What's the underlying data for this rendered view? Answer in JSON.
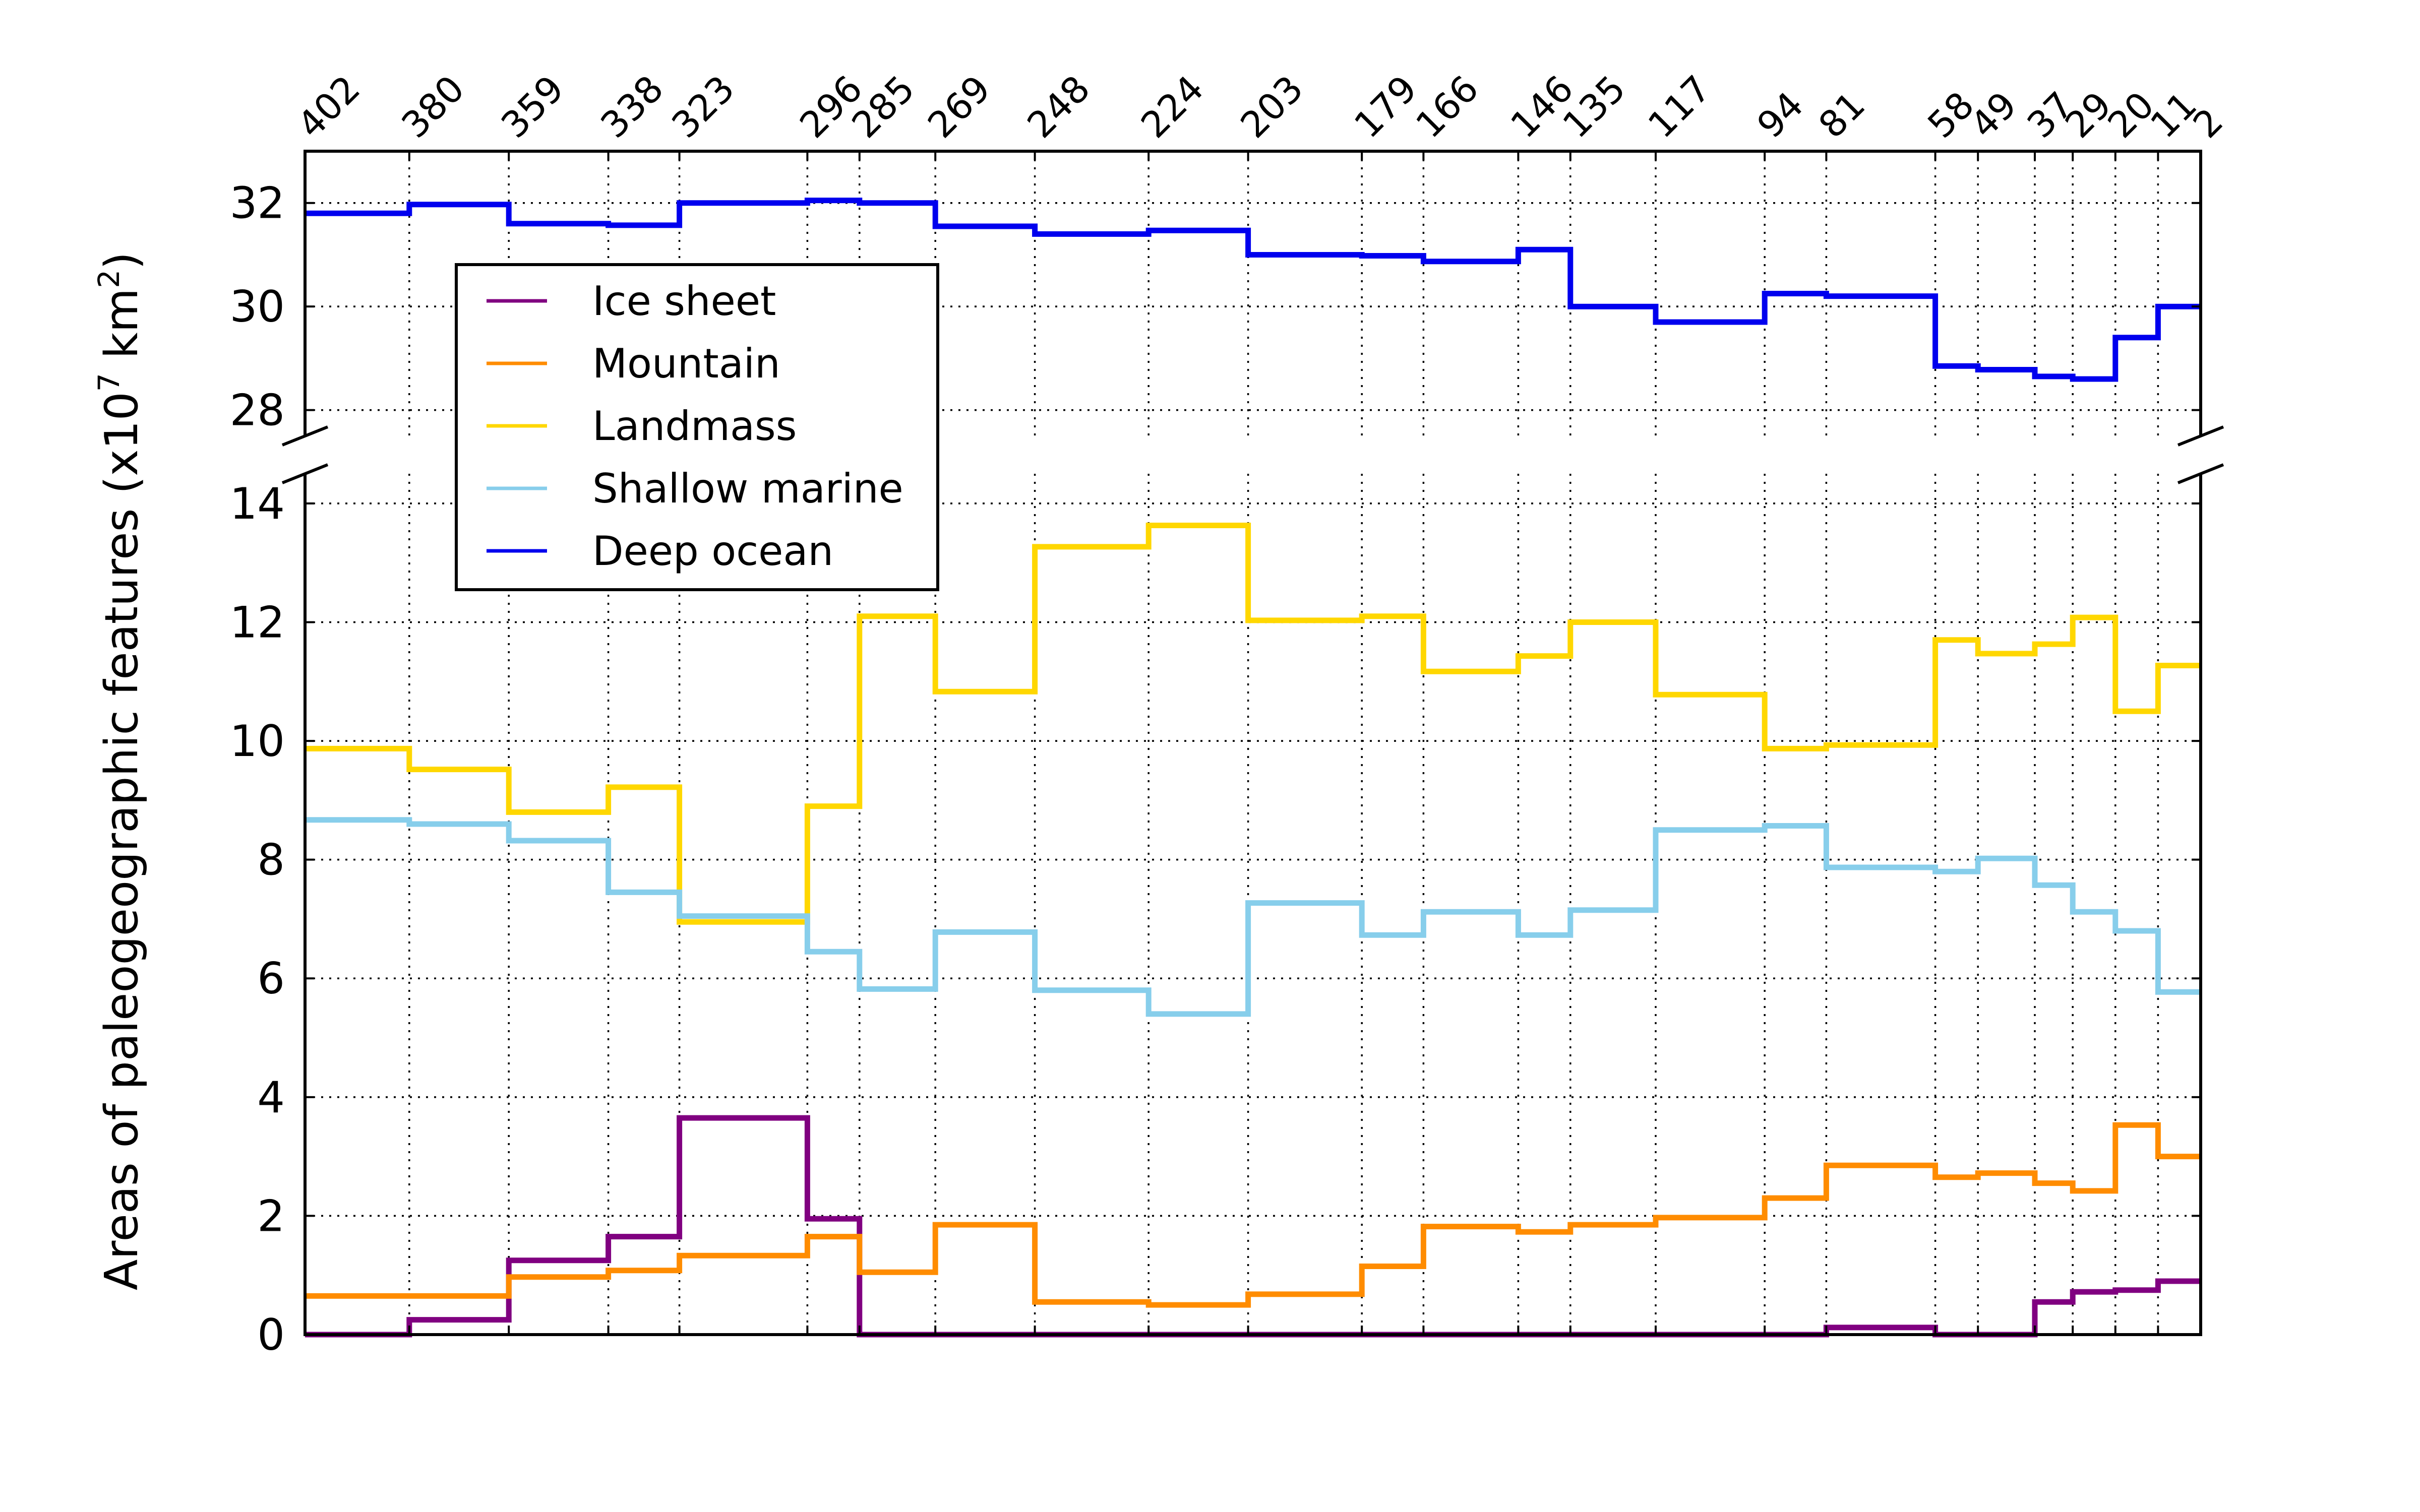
{
  "chart_data": {
    "type": "line",
    "step": true,
    "title": "",
    "xlabel": "",
    "ylabel": "Areas of paleogeographic features (x10",
    "ylabel_exponent": "7",
    "ylabel_unit_mid": " km",
    "ylabel_unit_exponent": "2",
    "ylabel_end": ")",
    "x_direction": "reversed",
    "xlim": [
      402,
      2
    ],
    "x_ticks": [
      402,
      380,
      359,
      338,
      323,
      296,
      285,
      269,
      248,
      224,
      203,
      179,
      166,
      146,
      135,
      117,
      94,
      81,
      58,
      49,
      37,
      29,
      20,
      11,
      2
    ],
    "x_tick_labels": [
      "402",
      "380",
      "359",
      "338",
      "323",
      "296",
      "285",
      "269",
      "248",
      "224",
      "203",
      "179",
      "166",
      "146",
      "135",
      "117",
      "94",
      "81",
      "58",
      "49",
      "37",
      "29",
      "20",
      "11",
      "2"
    ],
    "broken_y_axis": true,
    "upper_ylim": [
      27.5,
      33
    ],
    "upper_y_ticks": [
      "28",
      "30",
      "32"
    ],
    "lower_ylim": [
      0,
      14
    ],
    "lower_y_ticks": [
      "0",
      "2",
      "4",
      "6",
      "8",
      "10",
      "12",
      "14"
    ],
    "grid": true,
    "legend_position": "upper-left",
    "series": [
      {
        "name": "Ice sheet",
        "color": "#800080",
        "panel": "lower",
        "values": [
          0,
          0.25,
          1.25,
          1.65,
          3.65,
          1.95,
          0,
          0,
          0,
          0,
          0,
          0,
          0,
          0,
          0,
          0,
          0,
          0.12,
          0,
          0,
          0.55,
          0.72,
          0.75,
          0.9
        ]
      },
      {
        "name": "Mountain",
        "color": "#ff8c00",
        "panel": "lower",
        "values": [
          0.65,
          0.65,
          0.97,
          1.08,
          1.33,
          1.65,
          1.05,
          1.85,
          0.55,
          0.5,
          0.68,
          1.15,
          1.82,
          1.73,
          1.85,
          1.97,
          2.3,
          2.85,
          2.65,
          2.72,
          2.55,
          2.42,
          3.53,
          3.0
        ]
      },
      {
        "name": "Landmass",
        "color": "#ffd700",
        "panel": "lower",
        "values": [
          9.87,
          9.52,
          8.8,
          9.22,
          6.95,
          8.9,
          12.1,
          10.83,
          13.27,
          13.63,
          12.03,
          12.1,
          11.17,
          11.43,
          12.0,
          10.78,
          9.87,
          9.93,
          11.7,
          11.47,
          11.63,
          12.08,
          10.5,
          11.27
        ]
      },
      {
        "name": "Shallow marine",
        "color": "#87ceeb",
        "panel": "lower",
        "values": [
          8.67,
          8.6,
          8.32,
          7.45,
          7.05,
          6.45,
          5.82,
          6.78,
          5.8,
          5.4,
          7.27,
          6.73,
          7.12,
          6.73,
          7.15,
          8.5,
          8.57,
          7.87,
          7.8,
          8.02,
          7.57,
          7.12,
          6.8,
          5.77
        ]
      },
      {
        "name": "Deep ocean",
        "color": "#0000ee",
        "panel": "upper",
        "values": [
          31.8,
          31.97,
          31.6,
          31.57,
          32.0,
          32.05,
          32.0,
          31.55,
          31.4,
          31.47,
          31.0,
          30.98,
          30.87,
          31.1,
          30.0,
          29.7,
          30.25,
          30.2,
          28.85,
          28.78,
          28.65,
          28.6,
          29.4,
          30.0
        ]
      }
    ]
  }
}
